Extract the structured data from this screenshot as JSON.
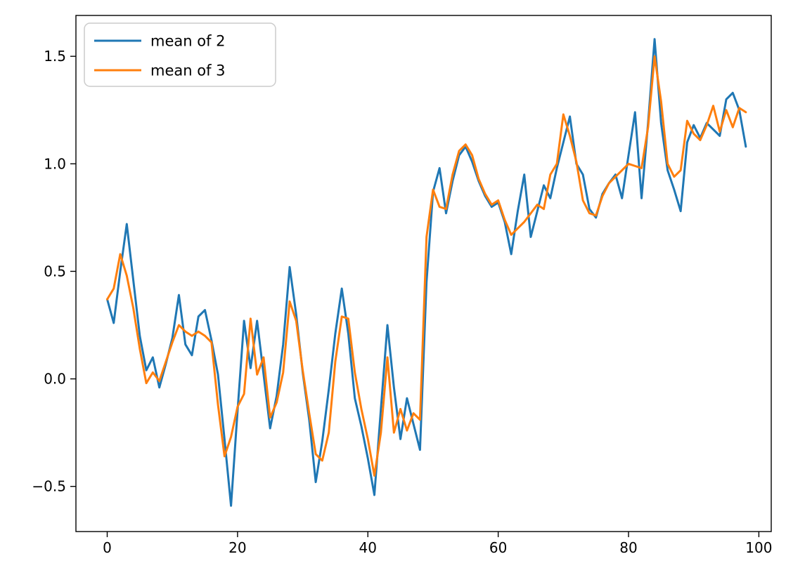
{
  "figure": {
    "background": "#ffffff",
    "spine_color": "#000000",
    "tick_font_size": 20
  },
  "chart_data": {
    "type": "line",
    "title": "",
    "xlabel": "",
    "ylabel": "",
    "grid": false,
    "legend_position": "upper left",
    "xlim": [
      -4.8,
      101.9
    ],
    "ylim": [
      -0.71,
      1.69
    ],
    "xticks": [
      {
        "value": 0,
        "label": "0"
      },
      {
        "value": 20,
        "label": "20"
      },
      {
        "value": 40,
        "label": "40"
      },
      {
        "value": 60,
        "label": "60"
      },
      {
        "value": 80,
        "label": "80"
      },
      {
        "value": 100,
        "label": "100"
      }
    ],
    "yticks": [
      {
        "value": -0.5,
        "label": "−0.5"
      },
      {
        "value": 0.0,
        "label": "0.0"
      },
      {
        "value": 0.5,
        "label": "0.5"
      },
      {
        "value": 1.0,
        "label": "1.0"
      },
      {
        "value": 1.5,
        "label": "1.5"
      }
    ],
    "x": [
      0,
      1,
      2,
      3,
      4,
      5,
      6,
      7,
      8,
      9,
      10,
      11,
      12,
      13,
      14,
      15,
      16,
      17,
      18,
      19,
      20,
      21,
      22,
      23,
      24,
      25,
      26,
      27,
      28,
      29,
      30,
      31,
      32,
      33,
      34,
      35,
      36,
      37,
      38,
      39,
      40,
      41,
      42,
      43,
      44,
      45,
      46,
      47,
      48,
      49,
      50,
      51,
      52,
      53,
      54,
      55,
      56,
      57,
      58,
      59,
      60,
      61,
      62,
      63,
      64,
      65,
      66,
      67,
      68,
      69,
      70,
      71,
      72,
      73,
      74,
      75,
      76,
      77,
      78,
      79,
      80,
      81,
      82,
      83,
      84,
      85,
      86,
      87,
      88,
      89,
      90,
      91,
      92,
      93,
      94,
      95,
      96,
      97,
      98
    ],
    "series": [
      {
        "name": "mean of 2",
        "color": "#1f77b4",
        "linewidth": 3,
        "values": [
          0.37,
          0.26,
          0.5,
          0.72,
          0.46,
          0.2,
          0.04,
          0.1,
          -0.04,
          0.07,
          0.19,
          0.39,
          0.16,
          0.11,
          0.29,
          0.32,
          0.18,
          0.02,
          -0.28,
          -0.59,
          -0.15,
          0.27,
          0.05,
          0.27,
          0.02,
          -0.23,
          -0.08,
          0.16,
          0.52,
          0.3,
          0.03,
          -0.19,
          -0.48,
          -0.29,
          -0.05,
          0.21,
          0.42,
          0.21,
          -0.09,
          -0.22,
          -0.37,
          -0.54,
          -0.14,
          0.25,
          -0.04,
          -0.28,
          -0.09,
          -0.21,
          -0.33,
          0.45,
          0.87,
          0.98,
          0.77,
          0.92,
          1.04,
          1.08,
          1.01,
          0.92,
          0.85,
          0.8,
          0.82,
          0.73,
          0.58,
          0.78,
          0.95,
          0.66,
          0.78,
          0.9,
          0.84,
          0.98,
          1.1,
          1.22,
          1.0,
          0.95,
          0.79,
          0.75,
          0.86,
          0.91,
          0.95,
          0.84,
          1.04,
          1.24,
          0.84,
          1.19,
          1.58,
          1.19,
          0.97,
          0.88,
          0.78,
          1.1,
          1.18,
          1.12,
          1.19,
          1.16,
          1.13,
          1.3,
          1.33,
          1.25,
          1.08
        ]
      },
      {
        "name": "mean of 3",
        "color": "#ff7f0e",
        "linewidth": 3,
        "values": [
          0.37,
          0.42,
          0.58,
          0.48,
          0.33,
          0.14,
          -0.02,
          0.03,
          -0.01,
          0.08,
          0.17,
          0.25,
          0.22,
          0.2,
          0.22,
          0.2,
          0.17,
          -0.12,
          -0.36,
          -0.27,
          -0.13,
          -0.07,
          0.28,
          0.02,
          0.1,
          -0.18,
          -0.11,
          0.03,
          0.36,
          0.27,
          0.04,
          -0.16,
          -0.35,
          -0.38,
          -0.25,
          0.08,
          0.29,
          0.28,
          0.03,
          -0.14,
          -0.28,
          -0.45,
          -0.25,
          0.1,
          -0.25,
          -0.14,
          -0.24,
          -0.16,
          -0.19,
          0.66,
          0.88,
          0.8,
          0.79,
          0.95,
          1.06,
          1.09,
          1.04,
          0.93,
          0.86,
          0.81,
          0.83,
          0.74,
          0.67,
          0.7,
          0.73,
          0.77,
          0.81,
          0.79,
          0.95,
          1.0,
          1.23,
          1.13,
          1.01,
          0.83,
          0.77,
          0.76,
          0.85,
          0.91,
          0.94,
          0.97,
          1.0,
          0.99,
          0.98,
          1.17,
          1.5,
          1.29,
          1.0,
          0.94,
          0.97,
          1.2,
          1.14,
          1.11,
          1.18,
          1.27,
          1.15,
          1.25,
          1.17,
          1.26,
          1.24
        ]
      }
    ]
  },
  "legend": {
    "border_color": "#cccccc",
    "background": "#ffffff"
  }
}
